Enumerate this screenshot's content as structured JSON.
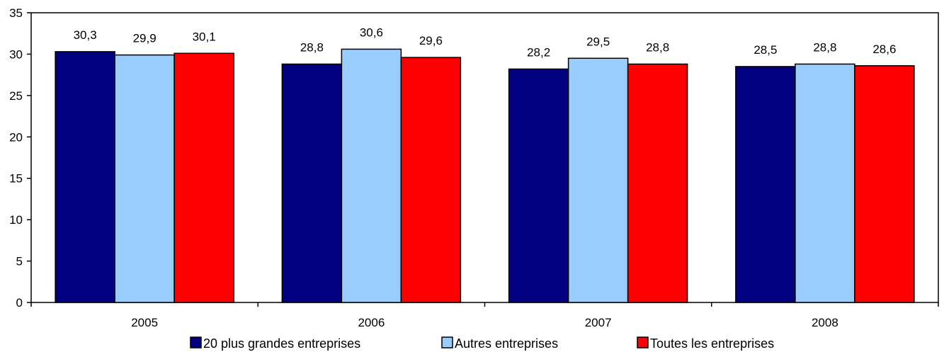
{
  "chart_data": {
    "type": "bar",
    "categories": [
      "2005",
      "2006",
      "2007",
      "2008"
    ],
    "series": [
      {
        "name": "20 plus grandes entreprises",
        "values": [
          30.3,
          28.8,
          28.2,
          28.5
        ],
        "labels": [
          "30,3",
          "28,8",
          "28,2",
          "28,5"
        ],
        "color": "#000080"
      },
      {
        "name": "Autres entreprises",
        "values": [
          29.9,
          30.6,
          29.5,
          28.8
        ],
        "labels": [
          "29,9",
          "30,6",
          "29,5",
          "28,8"
        ],
        "color": "#99ccff"
      },
      {
        "name": "Toutes les entreprises",
        "values": [
          30.1,
          29.6,
          28.8,
          28.6
        ],
        "labels": [
          "30,1",
          "29,6",
          "28,8",
          "28,6"
        ],
        "color": "#ff0000"
      }
    ],
    "ylim": [
      0,
      35
    ],
    "yticks": [
      0,
      5,
      10,
      15,
      20,
      25,
      30,
      35
    ],
    "grid": false,
    "legend_position": "bottom",
    "title": "",
    "xlabel": "",
    "ylabel": ""
  }
}
